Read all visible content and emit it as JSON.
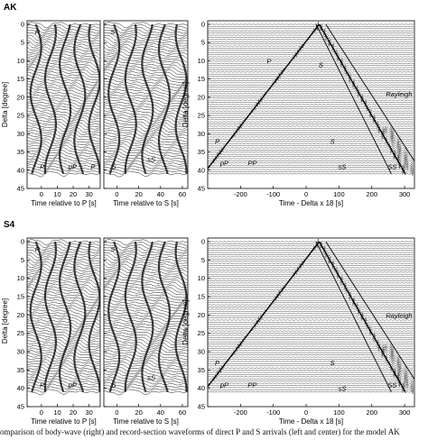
{
  "figure": {
    "caption": "Comparison of body-wave (right) and record-section waveforms of direct P and S arrivals (left and center) for the model AK",
    "panels": [
      {
        "id": "AK",
        "label": "AK",
        "ylabel": "Delta [degree]",
        "delta_ticks": [
          "0",
          "5",
          "10",
          "15",
          "20",
          "25",
          "30",
          "35",
          "40",
          "45"
        ],
        "left": {
          "xlabel": "Time relative to P [s]",
          "x_ticks": [
            "0",
            "10",
            "20",
            "30"
          ],
          "phases": [
            {
              "text": "P",
              "t": -4,
              "d": 2
            },
            {
              "text": "P",
              "t": -1,
              "d": 39
            },
            {
              "text": "pP",
              "t": 17,
              "d": 39
            },
            {
              "text": "P",
              "t": 31,
              "d": 39
            }
          ]
        },
        "mid": {
          "xlabel": "Time relative to S [s]",
          "x_ticks": [
            "0",
            "20",
            "40",
            "60"
          ],
          "phases": [
            {
              "text": "S",
              "t": -6,
              "d": 2
            },
            {
              "text": "S",
              "t": -5,
              "d": 39
            },
            {
              "text": "sS",
              "t": 28,
              "d": 37
            }
          ]
        },
        "right": {
          "xlabel": "Time - Delta x 18 [s]",
          "x_ticks": [
            "-200",
            "-100",
            "0",
            "100",
            "200",
            "300"
          ],
          "phases": [
            {
              "text": "P",
              "t": -120,
              "d": 10
            },
            {
              "text": "S",
              "t": 38,
              "d": 11
            },
            {
              "text": "Rayleigh",
              "t": 243,
              "d": 19
            },
            {
              "text": "P",
              "t": -278,
              "d": 32
            },
            {
              "text": "S",
              "t": 73,
              "d": 32
            },
            {
              "text": "pP",
              "t": -262,
              "d": 38
            },
            {
              "text": "PP",
              "t": -178,
              "d": 38
            },
            {
              "text": "sS",
              "t": 98,
              "d": 39
            },
            {
              "text": "SS",
              "t": 248,
              "d": 39
            }
          ]
        }
      },
      {
        "id": "S4",
        "label": "S4",
        "ylabel": "Delta [degree]",
        "delta_ticks": [
          "0",
          "5",
          "10",
          "15",
          "20",
          "25",
          "30",
          "35",
          "40",
          "45"
        ],
        "left": {
          "xlabel": "Time relative to P [s]",
          "x_ticks": [
            "0",
            "10",
            "20",
            "30"
          ],
          "phases": [
            {
              "text": "P",
              "t": -4,
              "d": 2
            },
            {
              "text": "P",
              "t": -1,
              "d": 39
            },
            {
              "text": "pP",
              "t": 17,
              "d": 39
            }
          ]
        },
        "mid": {
          "xlabel": "Time relative to S [s]",
          "x_ticks": [
            "0",
            "20",
            "40",
            "60"
          ],
          "phases": [
            {
              "text": "S",
              "t": -6,
              "d": 2
            },
            {
              "text": "S",
              "t": -5,
              "d": 39
            },
            {
              "text": "sS",
              "t": 28,
              "d": 37
            }
          ]
        },
        "right": {
          "xlabel": "Time - Delta x 18 [s]",
          "x_ticks": [
            "-200",
            "-100",
            "0",
            "100",
            "200",
            "300"
          ],
          "phases": [
            {
              "text": "Rayleigh",
              "t": 243,
              "d": 20
            },
            {
              "text": "P",
              "t": -278,
              "d": 33
            },
            {
              "text": "S",
              "t": 73,
              "d": 33
            },
            {
              "text": "pP",
              "t": -262,
              "d": 39
            },
            {
              "text": "PP",
              "t": -178,
              "d": 39
            },
            {
              "text": "sS",
              "t": 98,
              "d": 40
            },
            {
              "text": "SS",
              "t": 248,
              "d": 39
            }
          ]
        }
      }
    ]
  }
}
